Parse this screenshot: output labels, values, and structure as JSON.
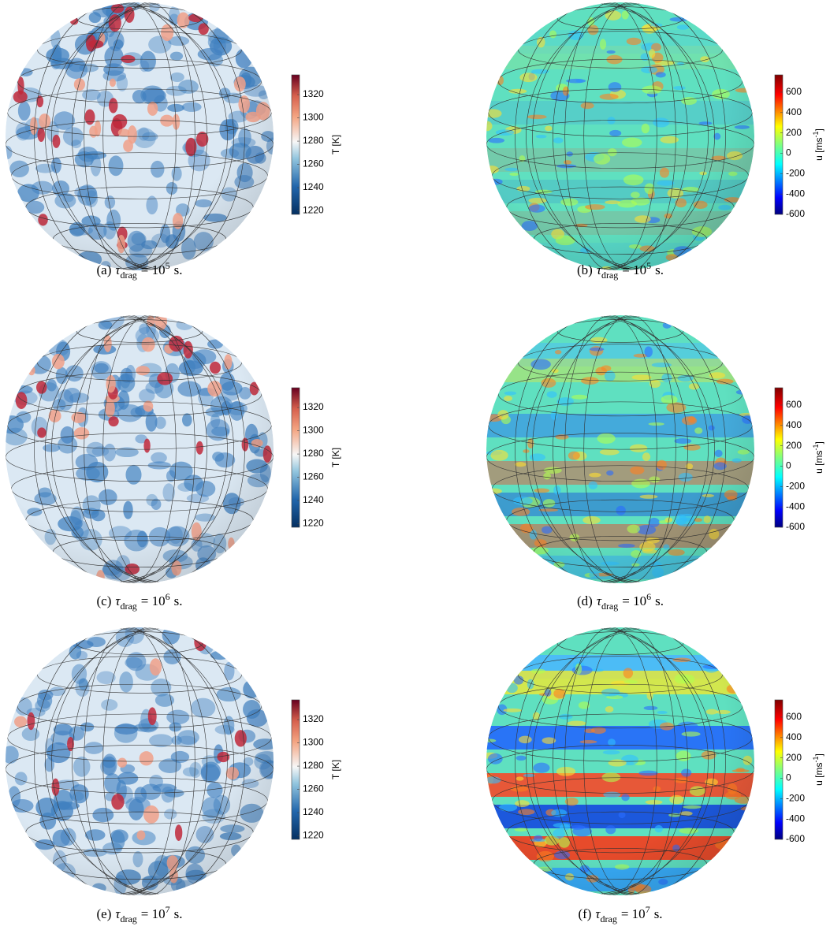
{
  "panels": [
    {
      "caption": {
        "label": "(a)",
        "symbol": "τ",
        "sub": "drag",
        "base": "= 10",
        "exp": "5",
        "unit": "s."
      },
      "colorbar": {
        "label": "T [K]",
        "clim": [
          1217,
          1337
        ],
        "ticks": [
          1220,
          1240,
          1260,
          1280,
          1300,
          1320
        ]
      }
    },
    {
      "caption": {
        "label": "(b)",
        "symbol": "τ",
        "sub": "drag",
        "base": "= 10",
        "exp": "5",
        "unit": "s."
      },
      "colorbar": {
        "label": "u [ms",
        "label_sup": "-1",
        "label_end": "]",
        "clim": [
          -600,
          770
        ],
        "ticks": [
          -600,
          -400,
          -200,
          0,
          200,
          400,
          600
        ]
      }
    },
    {
      "caption": {
        "label": "(c)",
        "symbol": "τ",
        "sub": "drag",
        "base": "= 10",
        "exp": "6",
        "unit": "s."
      },
      "colorbar": {
        "label": "T [K]",
        "clim": [
          1217,
          1337
        ],
        "ticks": [
          1220,
          1240,
          1260,
          1280,
          1300,
          1320
        ]
      }
    },
    {
      "caption": {
        "label": "(d)",
        "symbol": "τ",
        "sub": "drag",
        "base": "= 10",
        "exp": "6",
        "unit": "s."
      },
      "colorbar": {
        "label": "u [ms",
        "label_sup": "-1",
        "label_end": "]",
        "clim": [
          -600,
          770
        ],
        "ticks": [
          -600,
          -400,
          -200,
          0,
          200,
          400,
          600
        ]
      }
    },
    {
      "caption": {
        "label": "(e)",
        "symbol": "τ",
        "sub": "drag",
        "base": "= 10",
        "exp": "7",
        "unit": "s."
      },
      "colorbar": {
        "label": "T [K]",
        "clim": [
          1217,
          1337
        ],
        "ticks": [
          1220,
          1240,
          1260,
          1280,
          1300,
          1320
        ]
      }
    },
    {
      "caption": {
        "label": "(f)",
        "symbol": "τ",
        "sub": "drag",
        "base": "= 10",
        "exp": "7",
        "unit": "s."
      },
      "colorbar": {
        "label": "u [ms",
        "label_sup": "-1",
        "label_end": "]",
        "clim": [
          -600,
          770
        ],
        "ticks": [
          -600,
          -400,
          -200,
          0,
          200,
          400,
          600
        ]
      }
    }
  ]
}
